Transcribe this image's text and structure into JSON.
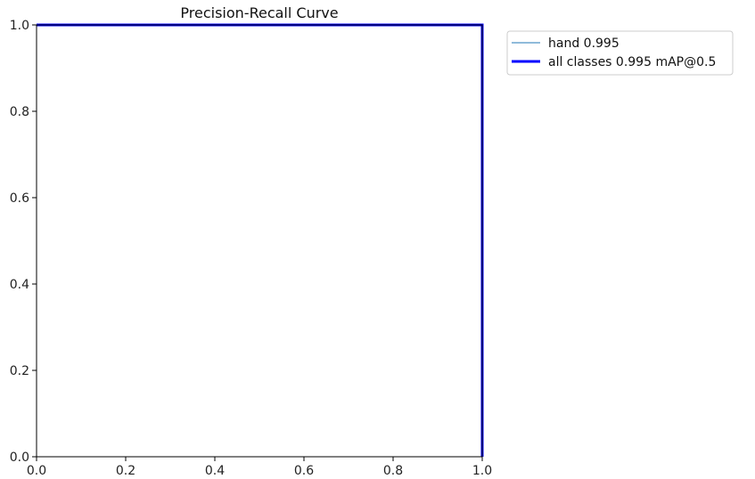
{
  "chart_data": {
    "type": "line",
    "title": "Precision-Recall Curve",
    "xlabel": "",
    "ylabel": "",
    "xlim": [
      0,
      1
    ],
    "ylim": [
      0,
      1
    ],
    "x_ticks": [
      "0.0",
      "0.2",
      "0.4",
      "0.6",
      "0.8",
      "1.0"
    ],
    "y_ticks": [
      "0.0",
      "0.2",
      "0.4",
      "0.6",
      "0.8",
      "1.0"
    ],
    "grid": false,
    "legend_position": "outside-top-right",
    "series": [
      {
        "name": "hand 0.995",
        "color": "#1f77b4",
        "line_width": "thin",
        "x": [
          0,
          0.999,
          1.0,
          1.0
        ],
        "y": [
          1.0,
          1.0,
          1.0,
          0.0
        ]
      },
      {
        "name": "all classes 0.995 mAP@0.5",
        "color": "#0000ff",
        "line_width": "thick",
        "x": [
          0,
          0.999,
          1.0,
          1.0
        ],
        "y": [
          1.0,
          1.0,
          1.0,
          0.0
        ]
      }
    ]
  }
}
